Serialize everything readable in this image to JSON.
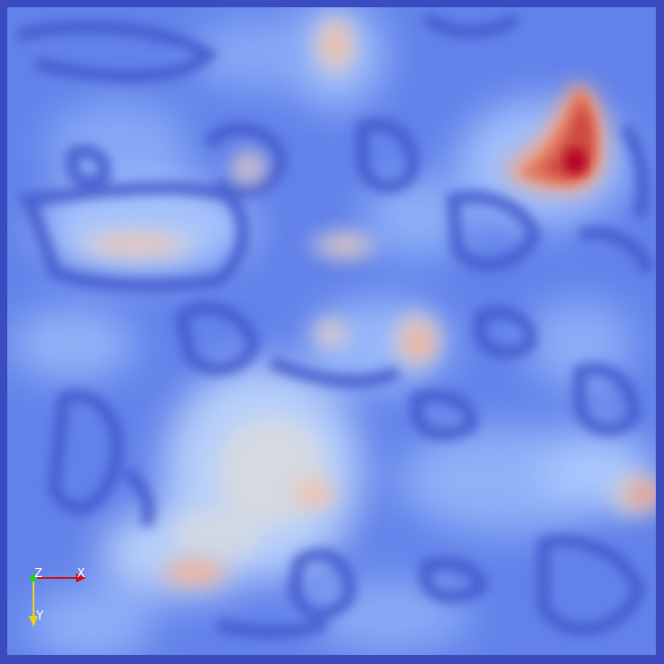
{
  "colormap": {
    "name": "cool-to-warm",
    "low": "#3b4cc0",
    "lowMid": "#6788ee",
    "mid": "#aac7fd",
    "center": "#dddddd",
    "highMid": "#f6a385",
    "high": "#d44e41",
    "peak": "#b40426"
  },
  "frame_color": "#3b4cc0",
  "orientation_axes": {
    "x_label": "X",
    "y_label": "Y",
    "z_label": "Z",
    "x_color": "#cc1111",
    "y_color": "#e8d21a",
    "z_color": "#22cc22"
  }
}
